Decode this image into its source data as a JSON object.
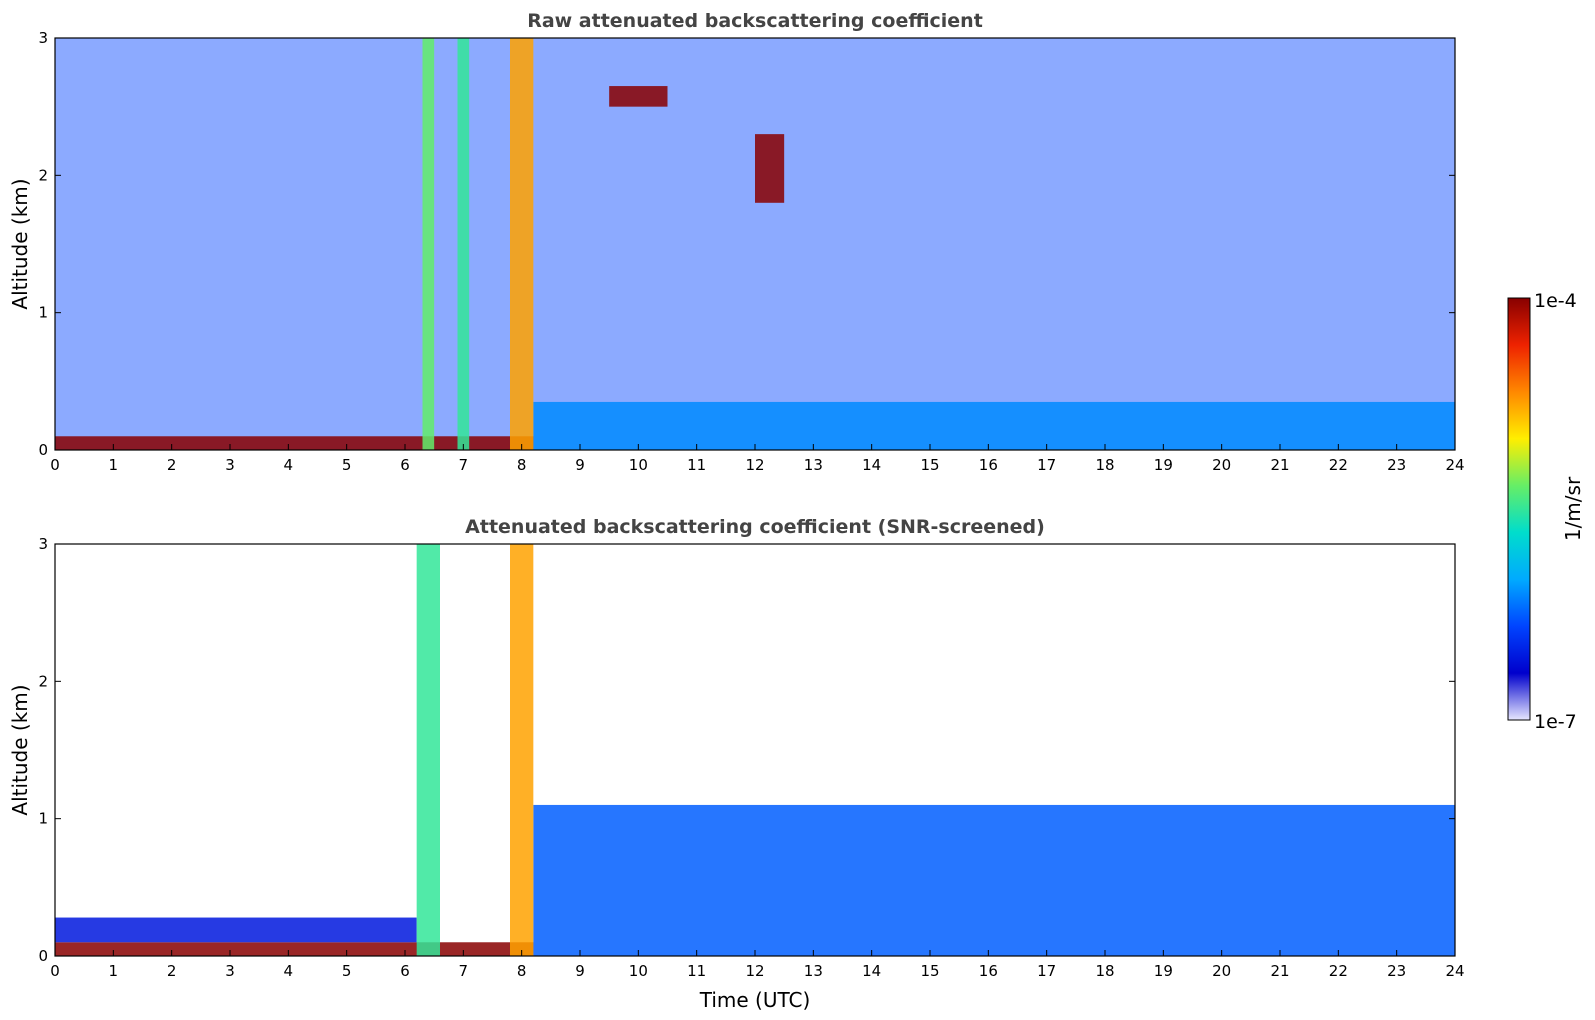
{
  "chart_data": [
    {
      "type": "heatmap",
      "title": "Raw attenuated backscattering coefficient",
      "xlabel": "",
      "ylabel": "Altitude (km)",
      "xlim": [
        0,
        24
      ],
      "ylim": [
        0,
        3
      ],
      "xticks": [
        "0",
        "1",
        "2",
        "3",
        "4",
        "5",
        "6",
        "7",
        "8",
        "9",
        "10",
        "11",
        "12",
        "13",
        "14",
        "15",
        "16",
        "17",
        "18",
        "19",
        "20",
        "21",
        "22",
        "23",
        "24"
      ],
      "yticks": [
        "0",
        "1",
        "2",
        "3"
      ],
      "features": [
        {
          "name": "surface layer",
          "x": [
            0,
            8.2
          ],
          "y": [
            0,
            0.1
          ],
          "level": 1.0
        },
        {
          "name": "boundary layer",
          "x": [
            8.2,
            24
          ],
          "y": [
            0,
            0.35
          ],
          "level": 0.3
        },
        {
          "name": "precipitation column",
          "x": [
            6.3,
            6.5
          ],
          "y": [
            0,
            3
          ],
          "level": 0.55
        },
        {
          "name": "precipitation column",
          "x": [
            6.9,
            7.1
          ],
          "y": [
            0,
            3
          ],
          "level": 0.5
        },
        {
          "name": "precipitation column",
          "x": [
            7.8,
            8.2
          ],
          "y": [
            0,
            3
          ],
          "level": 0.75
        },
        {
          "name": "cloud",
          "x": [
            9.5,
            10.5
          ],
          "y": [
            2.5,
            2.65
          ],
          "level": 1.0
        },
        {
          "name": "cloud",
          "x": [
            12.0,
            12.5
          ],
          "y": [
            1.8,
            2.3
          ],
          "level": 1.0
        }
      ]
    },
    {
      "type": "heatmap",
      "title": "Attenuated backscattering coefficient (SNR-screened)",
      "xlabel": "Time (UTC)",
      "ylabel": "Altitude (km)",
      "xlim": [
        0,
        24
      ],
      "ylim": [
        0,
        3
      ],
      "xticks": [
        "0",
        "1",
        "2",
        "3",
        "4",
        "5",
        "6",
        "7",
        "8",
        "9",
        "10",
        "11",
        "12",
        "13",
        "14",
        "15",
        "16",
        "17",
        "18",
        "19",
        "20",
        "21",
        "22",
        "23",
        "24"
      ],
      "yticks": [
        "0",
        "1",
        "2",
        "3"
      ],
      "features": [
        {
          "name": "surface layer",
          "x": [
            0,
            8.2
          ],
          "y": [
            0,
            0.1
          ],
          "level": 1.0
        },
        {
          "name": "boundary layer",
          "x": [
            0,
            6.2
          ],
          "y": [
            0.1,
            0.28
          ],
          "level": 0.15
        },
        {
          "name": "boundary layer",
          "x": [
            8.2,
            24
          ],
          "y": [
            0,
            1.1
          ],
          "level": 0.25
        },
        {
          "name": "precipitation column",
          "x": [
            6.2,
            6.6
          ],
          "y": [
            0,
            3
          ],
          "level": 0.5
        },
        {
          "name": "precipitation column",
          "x": [
            7.8,
            8.2
          ],
          "y": [
            0,
            3
          ],
          "level": 0.75
        }
      ]
    }
  ],
  "colorbar": {
    "label": "1/m/sr",
    "min_label": "1e-7",
    "max_label": "1e-4",
    "scale": "log",
    "colors": [
      "#e6e6ff",
      "#0000cc",
      "#0044ff",
      "#00aaff",
      "#00ddcc",
      "#66ee66",
      "#ffee00",
      "#ff8800",
      "#ee2200",
      "#880000"
    ]
  }
}
